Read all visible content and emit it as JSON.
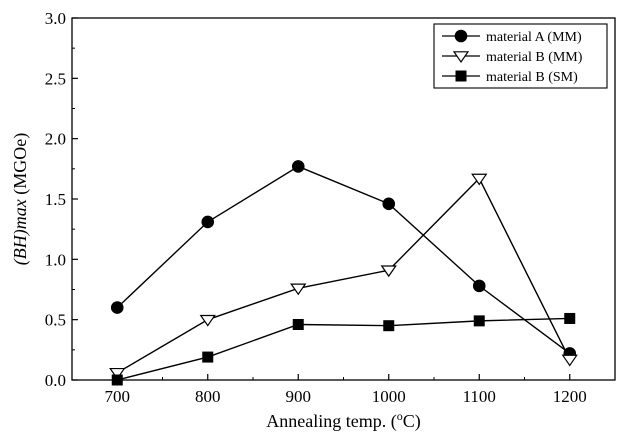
{
  "chart_data": {
    "type": "line",
    "title": "",
    "xlabel_prefix": "Annealing temp. (",
    "xlabel_sup": "o",
    "xlabel_suffix": "C)",
    "ylabel_italic": "(BH)max",
    "ylabel_units": "(MGOe)",
    "x": [
      700,
      800,
      900,
      1000,
      1100,
      1200
    ],
    "xlim": [
      650,
      1250
    ],
    "ylim": [
      0,
      3.0
    ],
    "xticks": [
      "700",
      "800",
      "900",
      "1000",
      "1100",
      "1200"
    ],
    "yticks": [
      "0.0",
      "0.5",
      "1.0",
      "1.5",
      "2.0",
      "2.5",
      "3.0"
    ],
    "ytick_values": [
      0,
      0.5,
      1.0,
      1.5,
      2.0,
      2.5,
      3.0
    ],
    "grid": false,
    "legend_position": "top-right",
    "series": [
      {
        "name": "material A (MM)",
        "marker": "filled-circle",
        "values": [
          0.6,
          1.31,
          1.77,
          1.46,
          0.78,
          0.22
        ]
      },
      {
        "name": "material B (MM)",
        "marker": "open-triangle-down",
        "values": [
          0.06,
          0.5,
          0.76,
          0.91,
          1.67,
          0.17
        ]
      },
      {
        "name": "material B (SM)",
        "marker": "filled-square",
        "values": [
          0.0,
          0.19,
          0.46,
          0.45,
          0.49,
          0.51
        ]
      }
    ],
    "colors": {
      "line": "#000000",
      "background": "#ffffff"
    }
  }
}
